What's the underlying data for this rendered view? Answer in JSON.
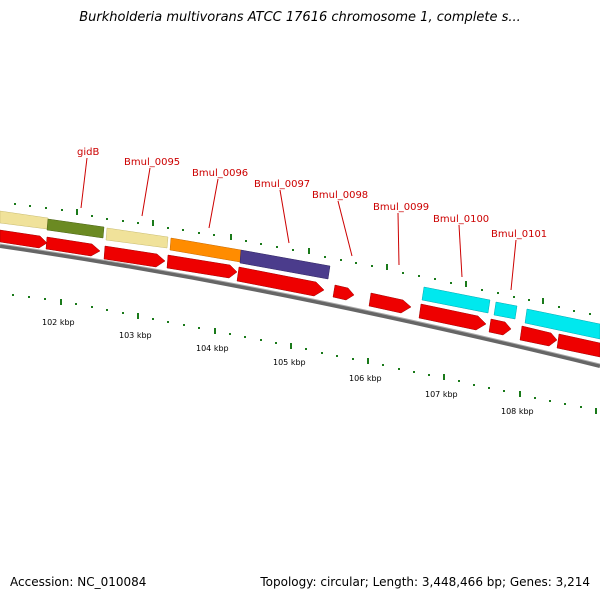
{
  "title": "Burkholderia multivorans ATCC 17616 chromosome 1, complete s...",
  "footer": {
    "accession": "Accession: NC_010084",
    "summary": "Topology: circular; Length: 3,448,466 bp; Genes: 3,214"
  },
  "colors": {
    "cds": "#ee0000",
    "backbone": "#777777",
    "tick": "#1a7a1a",
    "label": "#cc0000",
    "khaki": "#f0e29a",
    "olive": "#6b8a22",
    "orange": "#ff8c00",
    "purple": "#4b3c8c",
    "cyan": "#00e8ee"
  },
  "gene_labels": [
    "gidB",
    "Bmul_0095",
    "Bmul_0096",
    "Bmul_0097",
    "Bmul_0098",
    "Bmul_0099",
    "Bmul_0100",
    "Bmul_0101"
  ],
  "kbp_labels": [
    "102 kbp",
    "103 kbp",
    "104 kbp",
    "105 kbp",
    "106 kbp",
    "107 kbp",
    "108 kbp"
  ]
}
